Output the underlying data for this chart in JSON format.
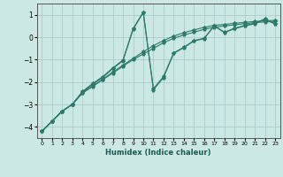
{
  "title": "",
  "xlabel": "Humidex (Indice chaleur)",
  "ylabel": "",
  "background_color": "#cce8e4",
  "grid_color": "#aaccca",
  "line_color": "#2a7a6a",
  "xlim": [
    -0.5,
    23.5
  ],
  "ylim": [
    -4.5,
    1.5
  ],
  "yticks": [
    -4,
    -3,
    -2,
    -1,
    0,
    1
  ],
  "xticks": [
    0,
    1,
    2,
    3,
    4,
    5,
    6,
    7,
    8,
    9,
    10,
    11,
    12,
    13,
    14,
    15,
    16,
    17,
    18,
    19,
    20,
    21,
    22,
    23
  ],
  "series": [
    {
      "x": [
        0,
        1,
        2,
        3,
        4,
        5,
        6,
        7,
        8,
        9,
        10,
        11,
        12,
        13,
        14,
        15,
        16,
        17,
        18,
        19,
        20,
        21,
        22,
        23
      ],
      "y": [
        -4.2,
        -3.75,
        -3.3,
        -3.0,
        -2.5,
        -2.2,
        -1.9,
        -1.6,
        -1.3,
        -1.0,
        -0.75,
        -0.5,
        -0.25,
        -0.05,
        0.1,
        0.22,
        0.35,
        0.45,
        0.5,
        0.55,
        0.6,
        0.65,
        0.68,
        0.7
      ]
    },
    {
      "x": [
        0,
        1,
        2,
        3,
        4,
        5,
        6,
        7,
        8,
        9,
        10,
        11,
        12,
        13,
        14,
        15,
        16,
        17,
        18,
        19,
        20,
        21,
        22,
        23
      ],
      "y": [
        -4.2,
        -3.75,
        -3.3,
        -3.0,
        -2.48,
        -2.18,
        -1.88,
        -1.55,
        -1.25,
        -0.95,
        -0.65,
        -0.38,
        -0.15,
        0.05,
        0.2,
        0.32,
        0.44,
        0.53,
        0.57,
        0.62,
        0.66,
        0.7,
        0.73,
        0.75
      ]
    },
    {
      "x": [
        0,
        1,
        2,
        3,
        4,
        5,
        6,
        7,
        8,
        9,
        10,
        11,
        12,
        13,
        14,
        15,
        16,
        17,
        18,
        19,
        20,
        21,
        22,
        23
      ],
      "y": [
        -4.2,
        -3.75,
        -3.3,
        -3.0,
        -2.45,
        -2.1,
        -1.8,
        -1.4,
        -1.05,
        0.35,
        1.1,
        -2.3,
        -1.75,
        -0.7,
        -0.45,
        -0.15,
        -0.05,
        0.5,
        0.2,
        0.38,
        0.5,
        0.6,
        0.8,
        0.58
      ]
    },
    {
      "x": [
        0,
        1,
        2,
        3,
        4,
        5,
        6,
        7,
        8,
        9,
        10,
        11,
        12,
        13,
        14,
        15,
        16,
        17,
        18,
        19,
        20,
        21,
        22,
        23
      ],
      "y": [
        -4.2,
        -3.75,
        -3.3,
        -3.0,
        -2.42,
        -2.07,
        -1.76,
        -1.37,
        -1.02,
        0.38,
        1.12,
        -2.35,
        -1.8,
        -0.72,
        -0.47,
        -0.17,
        -0.07,
        0.52,
        0.22,
        0.4,
        0.52,
        0.62,
        0.82,
        0.6
      ]
    }
  ]
}
